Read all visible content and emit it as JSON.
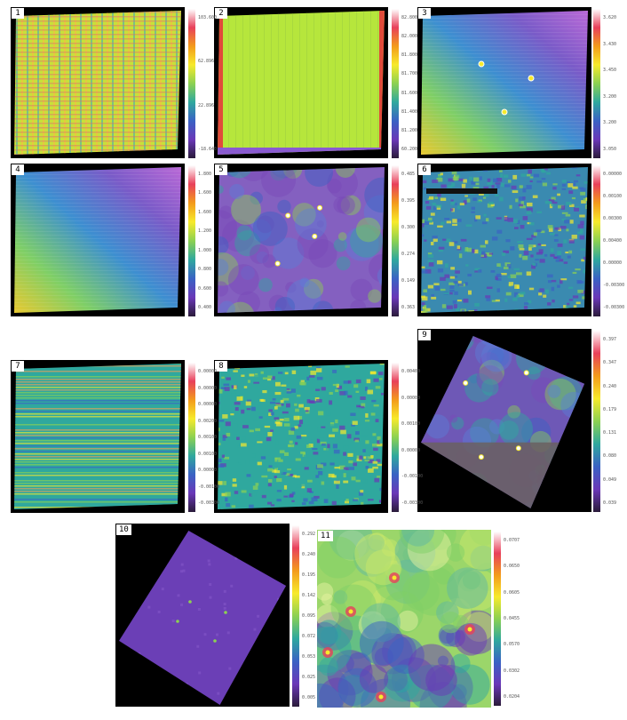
{
  "colormap": [
    "#ffffff",
    "#e8405a",
    "#f39b1b",
    "#f7ea2b",
    "#8cd152",
    "#2fa89e",
    "#3a62c4",
    "#6a38b8",
    "#2a1b3a"
  ],
  "panels": [
    {
      "label": "1",
      "ticks": [
        "103.600",
        "62.896",
        "22.896",
        "-18.640"
      ],
      "style": "stripes"
    },
    {
      "label": "2",
      "ticks": [
        "82.800",
        "82.000",
        "81.800",
        "81.700",
        "81.600",
        "81.400",
        "81.200",
        "60.200"
      ],
      "style": "flat"
    },
    {
      "label": "3",
      "ticks": [
        "3.620",
        "3.430",
        "3.450",
        "3.200",
        "3.200",
        "3.050"
      ],
      "style": "gradient"
    },
    {
      "label": "4",
      "ticks": [
        "1.800",
        "1.600",
        "1.600",
        "1.200",
        "1.000",
        "0.800",
        "0.600",
        "0.400"
      ],
      "style": "gradient"
    },
    {
      "label": "5",
      "ticks": [
        "0.485",
        "0.395",
        "0.300",
        "0.274",
        "0.149",
        "0.363"
      ],
      "style": "nebula"
    },
    {
      "label": "6",
      "ticks": [
        "0.00000",
        "0.00100",
        "0.00300",
        "0.00400",
        "0.00000",
        "-0.00300",
        "-0.00300"
      ],
      "style": "noise"
    },
    {
      "label": "7",
      "ticks": [
        "0.00000",
        "0.00000",
        "0.00000",
        "0.00200",
        "0.00100",
        "0.00100",
        "0.00000",
        "-0.00100",
        "-0.00300"
      ],
      "style": "hstripes"
    },
    {
      "label": "8",
      "ticks": [
        "0.00400",
        "0.00000",
        "0.00100",
        "0.00000",
        "-0.00100",
        "-0.00300"
      ],
      "style": "noise2"
    },
    {
      "label": "9",
      "ticks": [
        "0.397",
        "0.347",
        "0.240",
        "0.179",
        "0.131",
        "0.080",
        "0.049",
        "0.039"
      ],
      "style": "nebula2"
    },
    {
      "label": "10",
      "ticks": [
        "0.292",
        "0.240",
        "0.195",
        "0.142",
        "0.095",
        "0.072",
        "0.053",
        "0.025",
        "0.005"
      ],
      "style": "rotated"
    },
    {
      "label": "11",
      "ticks": [
        "0.0707",
        "0.0650",
        "0.0605",
        "0.0455",
        "0.0570",
        "0.0302",
        "0.0204"
      ],
      "style": "cloud"
    }
  ]
}
